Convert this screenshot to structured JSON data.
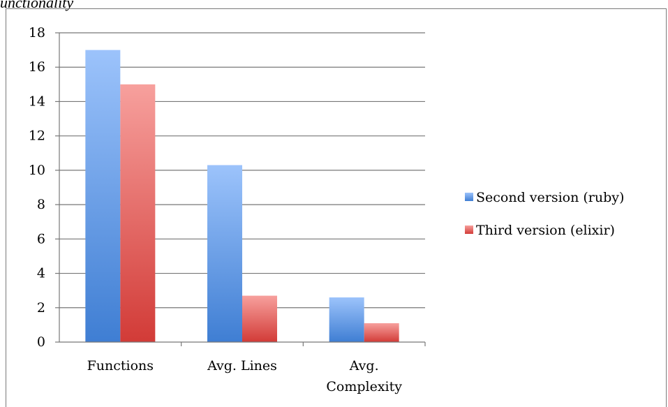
{
  "caption": {
    "text": "unctionality"
  },
  "chart_data": {
    "type": "bar",
    "categories": [
      "Functions",
      "Avg. Lines",
      "Avg. Complexity"
    ],
    "category_lines": [
      [
        "Functions"
      ],
      [
        "Avg. Lines"
      ],
      [
        "Avg.",
        "Complexity"
      ]
    ],
    "series": [
      {
        "name": "Second version (ruby)",
        "values": [
          17,
          10.3,
          2.6
        ]
      },
      {
        "name": "Third version (elixir)",
        "values": [
          15,
          2.7,
          1.1
        ]
      }
    ],
    "ylim": [
      0,
      18
    ],
    "yticks": [
      0,
      2,
      4,
      6,
      8,
      10,
      12,
      14,
      16,
      18
    ],
    "grid": true,
    "legend": "right",
    "colors": {
      "series_top": [
        "#9cc3fb",
        "#f7a09d"
      ],
      "series_bottom": [
        "#3f7ed3",
        "#d23b37"
      ],
      "grid": "#777777",
      "axis": "#777777"
    }
  }
}
